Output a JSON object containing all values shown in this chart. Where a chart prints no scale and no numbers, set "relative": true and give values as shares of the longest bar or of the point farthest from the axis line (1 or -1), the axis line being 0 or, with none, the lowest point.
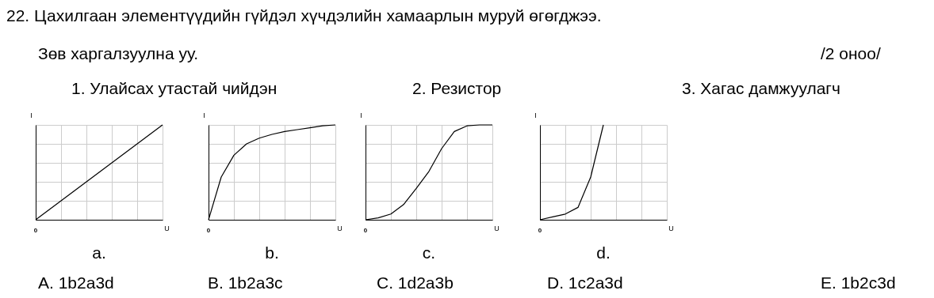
{
  "chart_data": [
    {
      "type": "other",
      "title": "22. Цахилгаан элементүүдийн гүйдэл хүчдэлийн хамаарлын муруй өгөгджээ.",
      "subtitle": "Зөв харгалзуулна уу.",
      "annotations": [
        "/2 оноо/",
        "1. Улайсах утастай чийдэн",
        "2. Резистор",
        "3. Хагас дамжуулагч"
      ]
    },
    {
      "type": "line",
      "relative": true,
      "categories": [
        null,
        null,
        null,
        null,
        null,
        null,
        null,
        null,
        null,
        null,
        null
      ],
      "values": [
        0,
        0.1,
        0.2,
        0.3,
        0.4,
        0.5,
        0.6,
        0.7,
        0.8,
        0.9,
        1
      ],
      "color": "#000000",
      "xlabel": "U",
      "ylabel": "I",
      "grid": true,
      "annotations": [
        "0",
        "a."
      ]
    },
    {
      "type": "line",
      "relative": true,
      "categories": [
        null,
        null,
        null,
        null,
        null,
        null,
        null,
        null,
        null,
        null,
        null
      ],
      "values": [
        0,
        0.45,
        0.68,
        0.8,
        0.86,
        0.9,
        0.93,
        0.95,
        0.97,
        0.99,
        1
      ],
      "color": "#000000",
      "xlabel": "U",
      "ylabel": "I",
      "grid": true,
      "annotations": [
        "0",
        "b."
      ]
    },
    {
      "type": "line",
      "relative": true,
      "categories": [
        null,
        null,
        null,
        null,
        null,
        null,
        null,
        null,
        null,
        null,
        null
      ],
      "values": [
        0,
        0.02,
        0.06,
        0.16,
        0.33,
        0.51,
        0.75,
        0.93,
        0.99,
        1,
        1
      ],
      "color": "#000000",
      "xlabel": "U",
      "ylabel": "I",
      "grid": true,
      "annotations": [
        "0",
        "c."
      ]
    },
    {
      "type": "line",
      "relative": true,
      "categories": [
        null,
        null,
        null,
        null,
        null,
        null,
        null,
        null,
        null,
        null,
        null
      ],
      "values": [
        0,
        0.03,
        0.06,
        0.13,
        0.45,
        1,
        null,
        null,
        null,
        null,
        null
      ],
      "color": "#000000",
      "xlabel": "U",
      "ylabel": "I",
      "grid": true,
      "annotations": [
        "0",
        "d."
      ]
    },
    {
      "type": "other",
      "annotations": [
        "A. 1b2a3d",
        "B. 1b2a3c",
        "C. 1d2a3b",
        "D. 1c2a3d",
        "E. 1b2c3d"
      ]
    }
  ]
}
